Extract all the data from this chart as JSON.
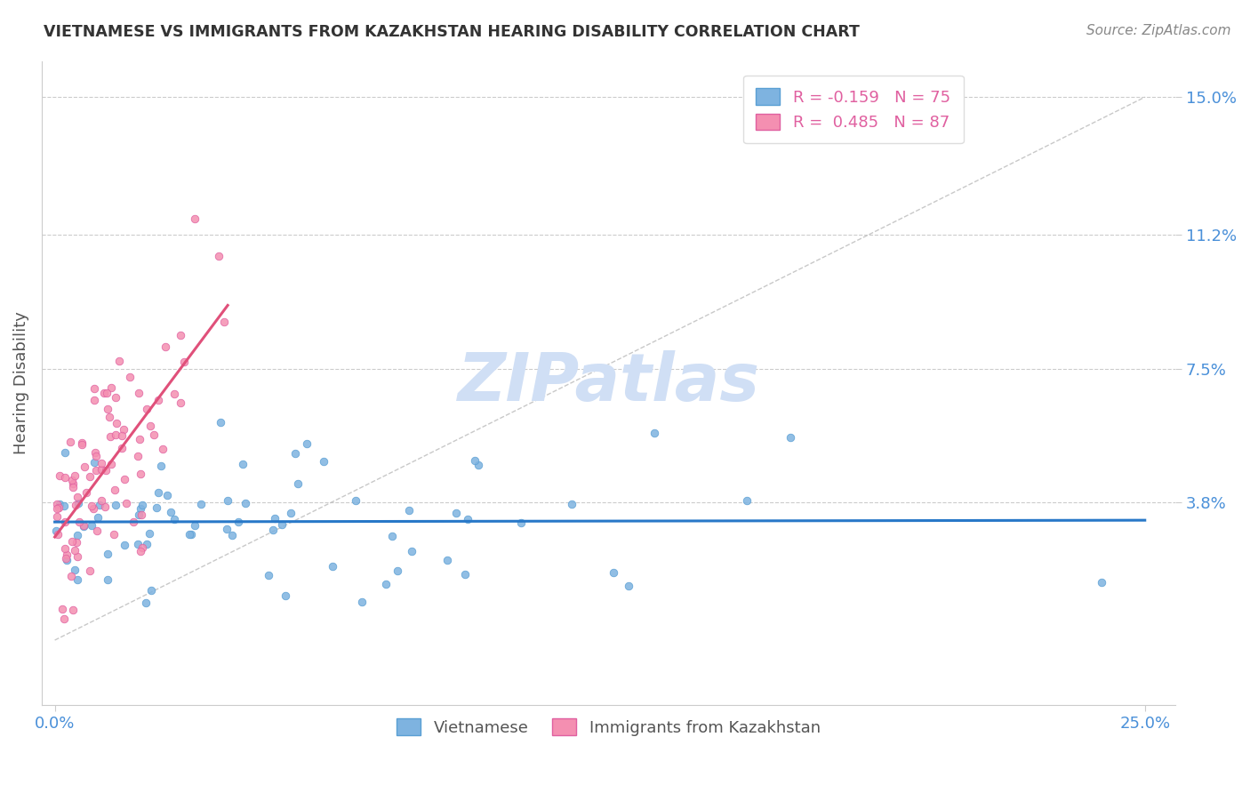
{
  "title": "VIETNAMESE VS IMMIGRANTS FROM KAZAKHSTAN HEARING DISABILITY CORRELATION CHART",
  "source": "Source: ZipAtlas.com",
  "ylabel": "Hearing Disability",
  "series1_name": "Vietnamese",
  "series2_name": "Immigrants from Kazakhstan",
  "series1_color": "#7eb3e0",
  "series2_color": "#f48fb1",
  "series1_edge": "#5a9fd4",
  "series2_edge": "#e060a0",
  "trend1_color": "#2878c8",
  "trend2_color": "#e0507a",
  "watermark": "ZIPatlas",
  "watermark_color": "#d0dff5",
  "ref_line_color": "#bbbbbb",
  "grid_color": "#cccccc",
  "title_color": "#333333",
  "tick_label_color": "#4a90d9",
  "legend_r1": "R = -0.159   N = 75",
  "legend_r2": "R =  0.485   N = 87",
  "legend_text_color": "#e060a0",
  "ytick_vals": [
    0.038,
    0.075,
    0.112,
    0.15
  ],
  "ytick_labels": [
    "3.8%",
    "7.5%",
    "11.2%",
    "15.0%"
  ]
}
